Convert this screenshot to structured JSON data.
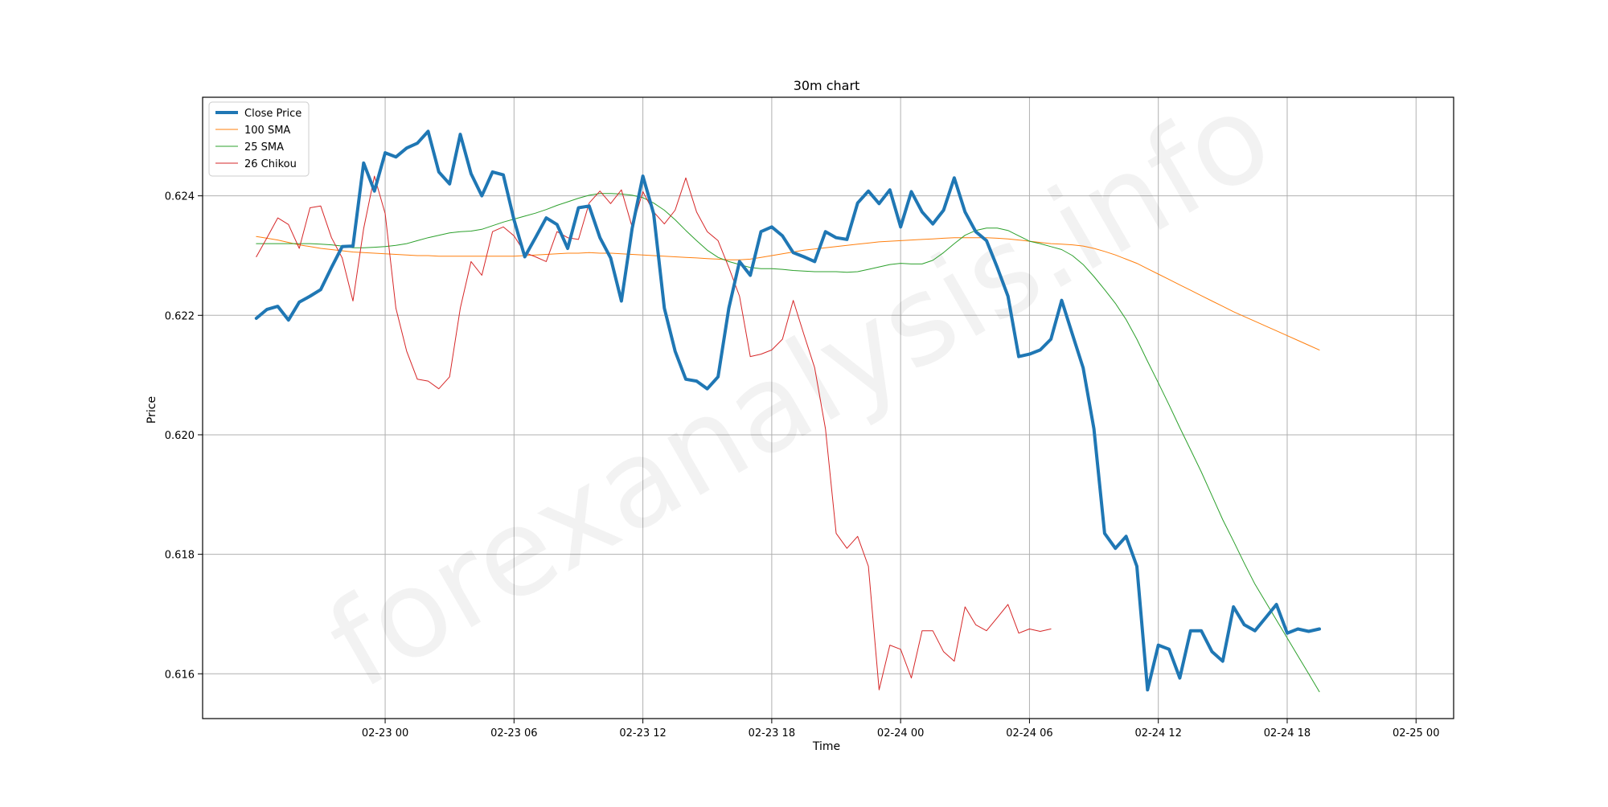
{
  "watermark": "forexanalysis.info",
  "colors": {
    "close": "#1f77b4",
    "sma100": "#ff7f0e",
    "sma25": "#2ca02c",
    "chikou": "#d62728",
    "grid": "#b0b0b0"
  },
  "chart_data": {
    "type": "line",
    "title": "30m chart",
    "xlabel": "Time",
    "ylabel": "Price",
    "x_start": "2023-02-22 18:00",
    "x_step_minutes": 30,
    "x_ticks": [
      {
        "label": "02-23 00",
        "value": "2023-02-23 00:00"
      },
      {
        "label": "02-23 06",
        "value": "2023-02-23 06:00"
      },
      {
        "label": "02-23 12",
        "value": "2023-02-23 12:00"
      },
      {
        "label": "02-23 18",
        "value": "2023-02-23 18:00"
      },
      {
        "label": "02-24 00",
        "value": "2023-02-24 00:00"
      },
      {
        "label": "02-24 06",
        "value": "2023-02-24 06:00"
      },
      {
        "label": "02-24 12",
        "value": "2023-02-24 12:00"
      },
      {
        "label": "02-24 18",
        "value": "2023-02-24 18:00"
      },
      {
        "label": "02-25 00",
        "value": "2023-02-25 00:00"
      }
    ],
    "xlim": [
      "2023-02-22 15:30",
      "2023-02-25 01:45"
    ],
    "y_ticks": [
      0.616,
      0.618,
      0.62,
      0.622,
      0.624
    ],
    "y_tick_labels": [
      "0.616",
      "0.618",
      "0.620",
      "0.622",
      "0.624"
    ],
    "ylim": [
      0.61525,
      0.62565
    ],
    "grid": true,
    "legend": "upper left",
    "series": [
      {
        "name": "Close Price",
        "key": "close",
        "width": "thick",
        "values": [
          0.62195,
          0.6221,
          0.62215,
          0.62192,
          0.62222,
          0.62232,
          0.62243,
          0.6228,
          0.62315,
          0.62316,
          0.62455,
          0.62408,
          0.62472,
          0.62465,
          0.6248,
          0.62488,
          0.62508,
          0.6244,
          0.6242,
          0.62503,
          0.62437,
          0.624,
          0.6244,
          0.62435,
          0.6236,
          0.62298,
          0.6233,
          0.62363,
          0.62352,
          0.62312,
          0.6238,
          0.62383,
          0.6233,
          0.62296,
          0.62224,
          0.62345,
          0.62433,
          0.6237,
          0.62212,
          0.6214,
          0.62093,
          0.6209,
          0.62077,
          0.62097,
          0.62212,
          0.6229,
          0.62267,
          0.6234,
          0.62348,
          0.62333,
          0.62305,
          0.62298,
          0.6229,
          0.6234,
          0.6233,
          0.62327,
          0.62388,
          0.62408,
          0.62387,
          0.6241,
          0.62348,
          0.62407,
          0.62373,
          0.62353,
          0.62376,
          0.6243,
          0.62373,
          0.6234,
          0.62325,
          0.6228,
          0.62232,
          0.62131,
          0.62135,
          0.62142,
          0.6216,
          0.62225,
          0.62168,
          0.62112,
          0.6201,
          0.61835,
          0.6181,
          0.6183,
          0.6178,
          0.61573,
          0.61648,
          0.61641,
          0.61593,
          0.61672,
          0.61672,
          0.61637,
          0.61621,
          0.61712,
          0.61682,
          0.61672,
          0.61694,
          0.61716,
          0.61668,
          0.61675,
          0.61671,
          0.61675
        ]
      },
      {
        "name": "100 SMA",
        "key": "sma100",
        "width": "thin",
        "values": [
          0.62332,
          0.62329,
          0.62326,
          0.62322,
          0.62318,
          0.62315,
          0.62312,
          0.6231,
          0.62308,
          0.62306,
          0.62305,
          0.62304,
          0.62303,
          0.62302,
          0.62301,
          0.623,
          0.623,
          0.62299,
          0.62299,
          0.62299,
          0.62299,
          0.62299,
          0.62299,
          0.62299,
          0.62299,
          0.623,
          0.62301,
          0.62302,
          0.62303,
          0.62304,
          0.62304,
          0.62305,
          0.62304,
          0.62304,
          0.62303,
          0.62302,
          0.62301,
          0.623,
          0.62299,
          0.62298,
          0.62297,
          0.62296,
          0.62295,
          0.62294,
          0.62293,
          0.62293,
          0.62294,
          0.62297,
          0.623,
          0.62303,
          0.62306,
          0.62309,
          0.62311,
          0.62313,
          0.62315,
          0.62317,
          0.62319,
          0.62321,
          0.62323,
          0.62324,
          0.62325,
          0.62326,
          0.62327,
          0.62328,
          0.62329,
          0.6233,
          0.6233,
          0.6233,
          0.6233,
          0.62329,
          0.62328,
          0.62326,
          0.62324,
          0.62322,
          0.6232,
          0.62319,
          0.62318,
          0.62316,
          0.62312,
          0.62307,
          0.62301,
          0.62294,
          0.62287,
          0.62278,
          0.62269,
          0.6226,
          0.62251,
          0.62242,
          0.62233,
          0.62224,
          0.62215,
          0.62206,
          0.62198,
          0.6219,
          0.62182,
          0.62174,
          0.62166,
          0.62158,
          0.6215,
          0.62142
        ]
      },
      {
        "name": "25 SMA",
        "key": "sma25",
        "width": "thin",
        "values": [
          0.6232,
          0.6232,
          0.6232,
          0.6232,
          0.6232,
          0.6232,
          0.62319,
          0.62318,
          0.62316,
          0.62313,
          0.62313,
          0.62314,
          0.62315,
          0.62317,
          0.6232,
          0.62325,
          0.6233,
          0.62334,
          0.62338,
          0.6234,
          0.62341,
          0.62344,
          0.6235,
          0.62356,
          0.62361,
          0.62366,
          0.62371,
          0.62377,
          0.62384,
          0.6239,
          0.62396,
          0.62401,
          0.62404,
          0.62404,
          0.62403,
          0.62401,
          0.62397,
          0.62388,
          0.62376,
          0.6236,
          0.62342,
          0.62325,
          0.62309,
          0.62297,
          0.6229,
          0.62285,
          0.6228,
          0.62278,
          0.62278,
          0.62277,
          0.62275,
          0.62274,
          0.62273,
          0.62273,
          0.62273,
          0.62272,
          0.62273,
          0.62277,
          0.62281,
          0.62285,
          0.62287,
          0.62286,
          0.62286,
          0.62292,
          0.62305,
          0.6232,
          0.62334,
          0.62342,
          0.62346,
          0.62346,
          0.62342,
          0.62333,
          0.62324,
          0.6232,
          0.62315,
          0.6231,
          0.623,
          0.62285,
          0.62265,
          0.62243,
          0.6222,
          0.62193,
          0.6216,
          0.62123,
          0.62087,
          0.6205,
          0.62012,
          0.61975,
          0.61938,
          0.61898,
          0.61858,
          0.61822,
          0.61785,
          0.6175,
          0.6172,
          0.6169,
          0.6166,
          0.6163,
          0.616,
          0.6157
        ]
      },
      {
        "name": "26 Chikou",
        "key": "chikou",
        "width": "thin",
        "values": [
          0.62298,
          0.6233,
          0.62363,
          0.62352,
          0.62312,
          0.6238,
          0.62383,
          0.6233,
          0.62296,
          0.62224,
          0.62345,
          0.62433,
          0.6237,
          0.62212,
          0.6214,
          0.62093,
          0.6209,
          0.62077,
          0.62097,
          0.62212,
          0.6229,
          0.62267,
          0.6234,
          0.62348,
          0.62333,
          0.62305,
          0.62298,
          0.6229,
          0.6234,
          0.6233,
          0.62327,
          0.62388,
          0.62408,
          0.62387,
          0.6241,
          0.62348,
          0.62407,
          0.62373,
          0.62353,
          0.62376,
          0.6243,
          0.62373,
          0.6234,
          0.62325,
          0.6228,
          0.62232,
          0.62131,
          0.62135,
          0.62142,
          0.6216,
          0.62225,
          0.62168,
          0.62112,
          0.6201,
          0.61835,
          0.6181,
          0.6183,
          0.6178,
          0.61573,
          0.61648,
          0.61641,
          0.61593,
          0.61672,
          0.61672,
          0.61637,
          0.61621,
          0.61712,
          0.61682,
          0.61672,
          0.61694,
          0.61716,
          0.61668,
          0.61675,
          0.61671,
          0.61675
        ]
      }
    ]
  }
}
